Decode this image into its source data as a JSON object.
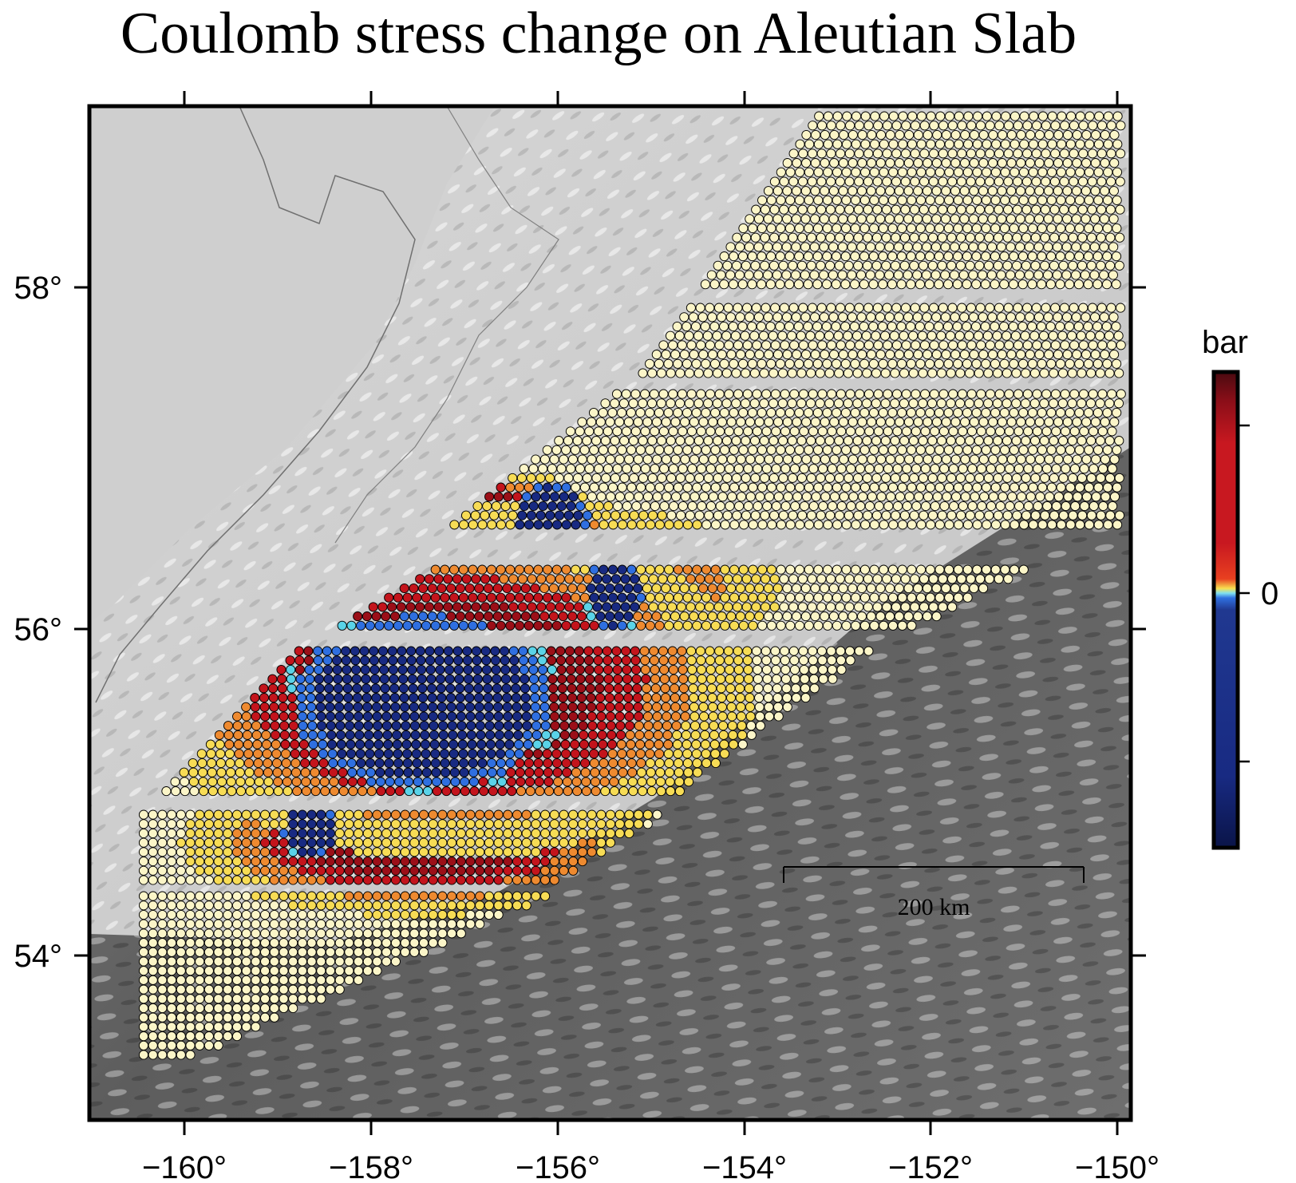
{
  "title": "Coulomb stress change on Aleutian Slab",
  "axes": {
    "lon_ticks": [
      "−160°",
      "−158°",
      "−156°",
      "−154°",
      "−152°",
      "−150°"
    ],
    "lat_ticks": [
      "58°",
      "56°",
      "54°"
    ],
    "lon_range": [
      -161,
      -150
    ],
    "lat_range": [
      53,
      59
    ]
  },
  "colorbar": {
    "label": "bar",
    "zero_label": "0",
    "colors": {
      "positive": "#b01020",
      "zero": "#f0f0c0",
      "negative": "#102a80"
    }
  },
  "scale_bar": {
    "label": "200 km"
  },
  "palette": {
    "cream": "#fbf5c8",
    "yellow": "#f7dc55",
    "orange": "#ee8a30",
    "red": "#c3141c",
    "darkred": "#9b0f18",
    "cyan": "#5ad3e8",
    "blue": "#2f6fe0",
    "navy": "#182a82"
  }
}
